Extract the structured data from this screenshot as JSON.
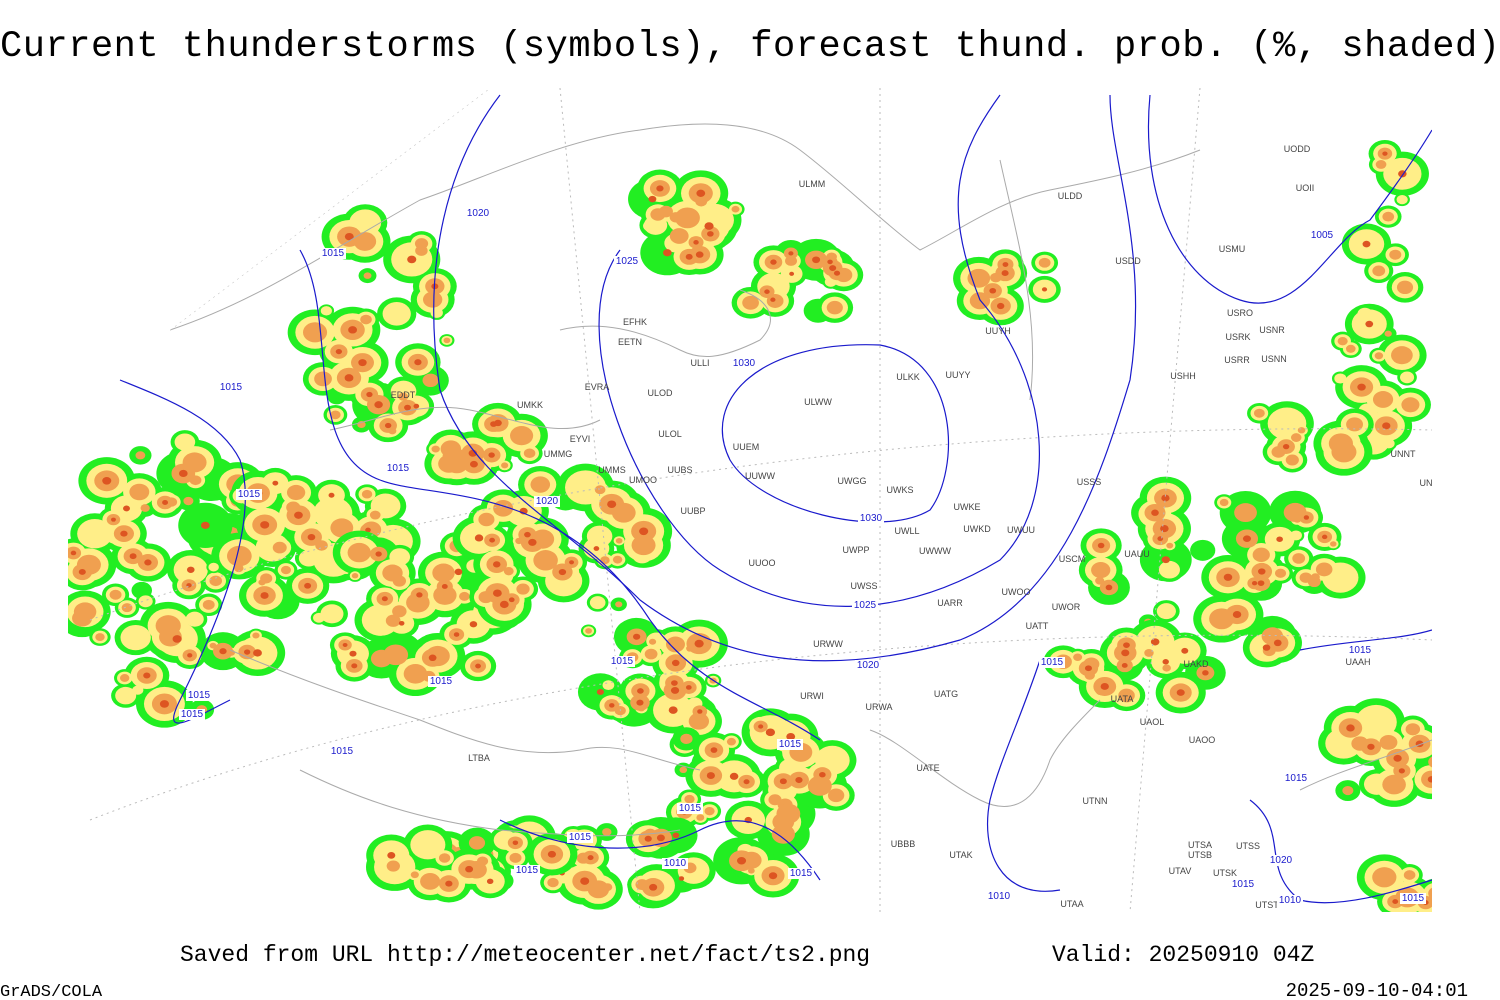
{
  "header": {
    "title": "Current thunderstorms (symbols), forecast thund. prob. (%, shaded)"
  },
  "footer": {
    "source": "Saved from URL http://meteocenter.net/fact/ts2.png",
    "valid": "Valid: 20250910 04Z",
    "software": "GrADS/COLA",
    "timestamp": "2025-09-10-04:01"
  },
  "stations": [
    "ULMM",
    "ULDD",
    "UODD",
    "UOII",
    "USDD",
    "USMU",
    "USRO",
    "USRK",
    "USNR",
    "USRR",
    "USNN",
    "USHH",
    "EFHK",
    "EETN",
    "ULLI",
    "EVRA",
    "ULOD",
    "ULKK",
    "UUYY",
    "UUYH",
    "ULWW",
    "UMKK",
    "EYVI",
    "ULOL",
    "UMMG",
    "UUEM",
    "UMMS",
    "UUBS",
    "UMOO",
    "UUWW",
    "UWGG",
    "UWKS",
    "UUBP",
    "UWKE",
    "UWKD",
    "UWUU",
    "UWLL",
    "UWWW",
    "USSS",
    "UUOO",
    "UWPP",
    "USCM",
    "UAUU",
    "UWSS",
    "UARR",
    "UWOO",
    "UWOR",
    "UATT",
    "URWW",
    "URWI",
    "UATG",
    "URWA",
    "UATE",
    "UTAK",
    "UTAA",
    "UTNN",
    "UAOL",
    "UAOO",
    "UATA",
    "UAKD",
    "UAAH",
    "UTSA",
    "UTSB",
    "UTSS",
    "UTAV",
    "UTSK",
    "UTST",
    "UNNT",
    "UNBB",
    "EDDT",
    "LTBA",
    "UBBB"
  ],
  "isobar_labels": [
    1020,
    1015,
    1025,
    1030,
    1005,
    1015,
    1015,
    1015,
    1020,
    1030,
    1025,
    1020,
    1015,
    1015,
    1015,
    1015,
    1015,
    1015,
    1015,
    1015,
    1015,
    1010,
    1015,
    1015,
    1010,
    1015,
    1015,
    1020,
    1015,
    1010,
    1015
  ]
}
